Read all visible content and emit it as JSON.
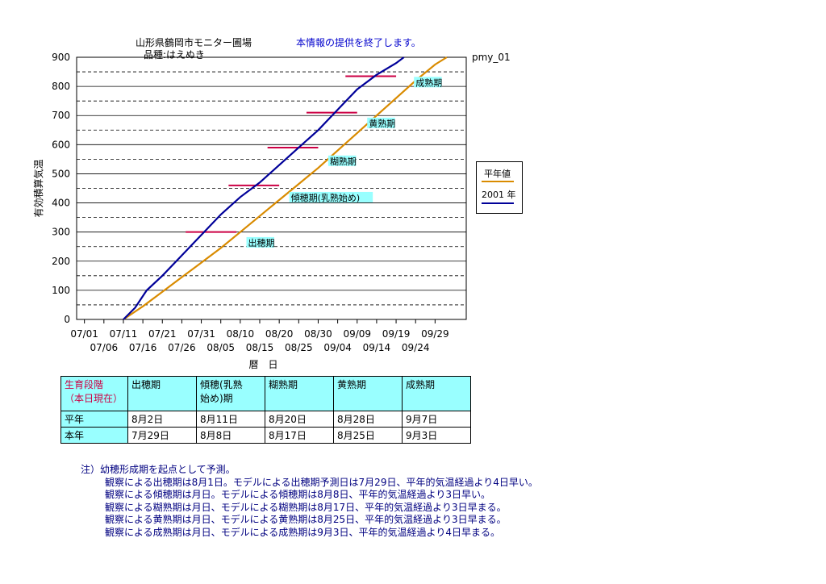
{
  "header": {
    "site": "山形県鶴岡市モニター圃場",
    "variety": "品種:はえぬき",
    "notice": "本情報の提供を終了します。",
    "chart_id": "pmy_01"
  },
  "legend": {
    "avg": "平年値",
    "year": "2001 年"
  },
  "colors": {
    "avg": "#d98b00",
    "year": "#000099",
    "stage_line": "#cc0044",
    "cyan": "#99ffff",
    "note": "#000080"
  },
  "chart_data": {
    "type": "line",
    "ylabel": "有効積算気温",
    "xlabel": "暦　日",
    "ylim": [
      0,
      900
    ],
    "yticks": [
      0,
      100,
      200,
      300,
      400,
      500,
      600,
      700,
      800,
      900
    ],
    "xticks_top": [
      "07/01",
      "07/11",
      "07/21",
      "07/31",
      "08/10",
      "08/20",
      "08/30",
      "09/09",
      "09/19",
      "09/29"
    ],
    "xticks_bottom": [
      "07/06",
      "07/16",
      "07/26",
      "08/05",
      "08/15",
      "08/25",
      "09/04",
      "09/14",
      "09/24"
    ],
    "series": [
      {
        "name": "平年値",
        "points": [
          [
            12,
            0
          ],
          [
            17,
            45
          ],
          [
            22,
            95
          ],
          [
            27,
            145
          ],
          [
            32,
            195
          ],
          [
            37,
            245
          ],
          [
            42,
            300
          ],
          [
            47,
            355
          ],
          [
            52,
            410
          ],
          [
            57,
            465
          ],
          [
            62,
            520
          ],
          [
            67,
            580
          ],
          [
            72,
            640
          ],
          [
            77,
            700
          ],
          [
            82,
            760
          ],
          [
            87,
            820
          ],
          [
            92,
            875
          ],
          [
            95,
            900
          ]
        ]
      },
      {
        "name": "2001 年",
        "points": [
          [
            12,
            0
          ],
          [
            15,
            40
          ],
          [
            18,
            100
          ],
          [
            22,
            150
          ],
          [
            27,
            220
          ],
          [
            32,
            290
          ],
          [
            37,
            360
          ],
          [
            42,
            420
          ],
          [
            47,
            470
          ],
          [
            52,
            530
          ],
          [
            57,
            590
          ],
          [
            62,
            650
          ],
          [
            67,
            720
          ],
          [
            72,
            790
          ],
          [
            77,
            840
          ],
          [
            82,
            880
          ],
          [
            84,
            900
          ]
        ]
      }
    ],
    "stage_markers": [
      {
        "label": "出穂期",
        "y": 300,
        "x_from": 28,
        "x_to": 41
      },
      {
        "label": "傾穂期(乳熟始め)",
        "y": 460,
        "x_from": 39,
        "x_to": 52
      },
      {
        "label": "糊熟期",
        "y": 590,
        "x_from": 49,
        "x_to": 62
      },
      {
        "label": "黄熟期",
        "y": 710,
        "x_from": 59,
        "x_to": 72
      },
      {
        "label": "成熟期",
        "y": 835,
        "x_from": 69,
        "x_to": 82
      }
    ],
    "stage_labels": [
      {
        "text": "出穂期",
        "x": 44,
        "y": 255
      },
      {
        "text": "傾穂期(乳熟始め)",
        "x": 55,
        "y": 410
      },
      {
        "text": "糊熟期",
        "x": 65,
        "y": 535
      },
      {
        "text": "黄熟期",
        "x": 75,
        "y": 665
      },
      {
        "text": "成熟期",
        "x": 87,
        "y": 805
      }
    ]
  },
  "table": {
    "header_label": "生育段階\n（本日現在）",
    "stages": [
      "出穂期",
      "傾穂(乳熟\n始め)期",
      "糊熟期",
      "黄熟期",
      "成熟期"
    ],
    "rows": [
      {
        "label": "平年",
        "values": [
          "8月2日",
          "8月11日",
          "8月20日",
          "8月28日",
          "9月7日"
        ]
      },
      {
        "label": "本年",
        "values": [
          "7月29日",
          "8月8日",
          "8月17日",
          "8月25日",
          "9月3日"
        ]
      }
    ]
  },
  "notes": [
    "注）幼穂形成期を起点として予測。",
    "観察による出穂期は8月1日。モデルによる出穂期予測日は7月29日、平年的気温経過より4日早い。",
    "観察による傾穂期は月日。モデルによる傾穂期は8月8日、平年的気温経過より3日早い。",
    "観察による糊熟期は月日、モデルによる糊熟期は8月17日、平年的気温経過より3日早まる。",
    "観察による黄熟期は月日、モデルによる黄熟期は8月25日、平年的気温経過より3日早まる。",
    "観察による成熟期は月日、モデルによる成熟期は9月3日、平年的気温経過より4日早まる。"
  ]
}
